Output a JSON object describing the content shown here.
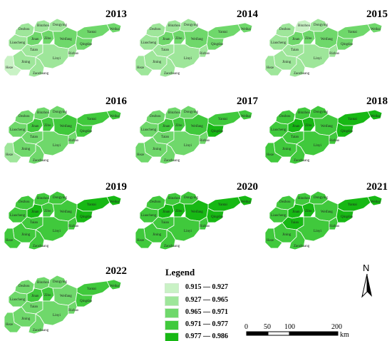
{
  "map": {
    "region_labels": [
      "Dezhou",
      "Binzhou",
      "Dongying",
      "Yantai",
      "Weihai",
      "Liaocheng",
      "Jinan",
      "Zibo",
      "Weifang",
      "Qingdao",
      "Taian",
      "Jining",
      "Linyi",
      "Rizhao",
      "Heze",
      "Zaozhuang"
    ],
    "panels": [
      {
        "year": "2013",
        "classes": {
          "Dezhou": 1,
          "Binzhou": 1,
          "Dongying": 1,
          "Yantai": 2,
          "Weihai": 2,
          "Liaocheng": 1,
          "Jinan": 2,
          "Zibo": 2,
          "Weifang": 2,
          "Qingdao": 2,
          "Taian": 1,
          "Jining": 1,
          "Linyi": 1,
          "Rizhao": 1,
          "Heze": 0,
          "Zaozhuang": 1
        }
      },
      {
        "year": "2014",
        "classes": {
          "Dezhou": 1,
          "Binzhou": 1,
          "Dongying": 1,
          "Yantai": 2,
          "Weihai": 2,
          "Liaocheng": 1,
          "Jinan": 2,
          "Zibo": 2,
          "Weifang": 2,
          "Qingdao": 2,
          "Taian": 1,
          "Jining": 1,
          "Linyi": 1,
          "Rizhao": 1,
          "Heze": 1,
          "Zaozhuang": 1
        }
      },
      {
        "year": "2015",
        "classes": {
          "Dezhou": 1,
          "Binzhou": 0,
          "Dongying": 1,
          "Yantai": 2,
          "Weihai": 2,
          "Liaocheng": 1,
          "Jinan": 2,
          "Zibo": 2,
          "Weifang": 2,
          "Qingdao": 2,
          "Taian": 1,
          "Jining": 1,
          "Linyi": 1,
          "Rizhao": 1,
          "Heze": 1,
          "Zaozhuang": 1
        }
      },
      {
        "year": "2016",
        "classes": {
          "Dezhou": 2,
          "Binzhou": 2,
          "Dongying": 2,
          "Yantai": 3,
          "Weihai": 3,
          "Liaocheng": 2,
          "Jinan": 3,
          "Zibo": 3,
          "Weifang": 3,
          "Qingdao": 3,
          "Taian": 2,
          "Jining": 2,
          "Linyi": 2,
          "Rizhao": 2,
          "Heze": 1,
          "Zaozhuang": 2
        }
      },
      {
        "year": "2017",
        "classes": {
          "Dezhou": 2,
          "Binzhou": 2,
          "Dongying": 2,
          "Yantai": 3,
          "Weihai": 3,
          "Liaocheng": 2,
          "Jinan": 3,
          "Zibo": 3,
          "Weifang": 3,
          "Qingdao": 4,
          "Taian": 2,
          "Jining": 2,
          "Linyi": 2,
          "Rizhao": 2,
          "Heze": 2,
          "Zaozhuang": 2
        }
      },
      {
        "year": "2018",
        "classes": {
          "Dezhou": 3,
          "Binzhou": 3,
          "Dongying": 3,
          "Yantai": 4,
          "Weihai": 4,
          "Liaocheng": 3,
          "Jinan": 4,
          "Zibo": 4,
          "Weifang": 3,
          "Qingdao": 4,
          "Taian": 3,
          "Jining": 3,
          "Linyi": 3,
          "Rizhao": 3,
          "Heze": 3,
          "Zaozhuang": 3
        }
      },
      {
        "year": "2019",
        "classes": {
          "Dezhou": 3,
          "Binzhou": 3,
          "Dongying": 3,
          "Yantai": 4,
          "Weihai": 4,
          "Liaocheng": 3,
          "Jinan": 4,
          "Zibo": 3,
          "Weifang": 3,
          "Qingdao": 4,
          "Taian": 3,
          "Jining": 3,
          "Linyi": 3,
          "Rizhao": 3,
          "Heze": 3,
          "Zaozhuang": 3
        }
      },
      {
        "year": "2020",
        "classes": {
          "Dezhou": 3,
          "Binzhou": 3,
          "Dongying": 3,
          "Yantai": 4,
          "Weihai": 4,
          "Liaocheng": 3,
          "Jinan": 4,
          "Zibo": 4,
          "Weifang": 4,
          "Qingdao": 4,
          "Taian": 3,
          "Jining": 3,
          "Linyi": 3,
          "Rizhao": 3,
          "Heze": 3,
          "Zaozhuang": 3
        }
      },
      {
        "year": "2021",
        "classes": {
          "Dezhou": 3,
          "Binzhou": 3,
          "Dongying": 3,
          "Yantai": 4,
          "Weihai": 4,
          "Liaocheng": 3,
          "Jinan": 4,
          "Zibo": 4,
          "Weifang": 3,
          "Qingdao": 4,
          "Taian": 4,
          "Jining": 3,
          "Linyi": 3,
          "Rizhao": 3,
          "Heze": 3,
          "Zaozhuang": 3
        }
      },
      {
        "year": "2022",
        "classes": {
          "Dezhou": 2,
          "Binzhou": 2,
          "Dongying": 2,
          "Yantai": 3,
          "Weihai": 3,
          "Liaocheng": 2,
          "Jinan": 3,
          "Zibo": 3,
          "Weifang": 2,
          "Qingdao": 3,
          "Taian": 2,
          "Jining": 2,
          "Linyi": 2,
          "Rizhao": 2,
          "Heze": 2,
          "Zaozhuang": 2
        }
      }
    ]
  },
  "legend": {
    "title": "Legend",
    "items": [
      {
        "label": "0.915 — 0.927",
        "color": "#c9f2c5"
      },
      {
        "label": "0.927 — 0.965",
        "color": "#9ee69a"
      },
      {
        "label": "0.965 — 0.971",
        "color": "#6fd86b"
      },
      {
        "label": "0.971 — 0.977",
        "color": "#40c93c"
      },
      {
        "label": "0.977 — 0.986",
        "color": "#17b814"
      }
    ]
  },
  "north_arrow": {
    "label": "N"
  },
  "scale_bar": {
    "ticks": [
      "0",
      "50",
      "100",
      "200"
    ],
    "unit": "km"
  }
}
